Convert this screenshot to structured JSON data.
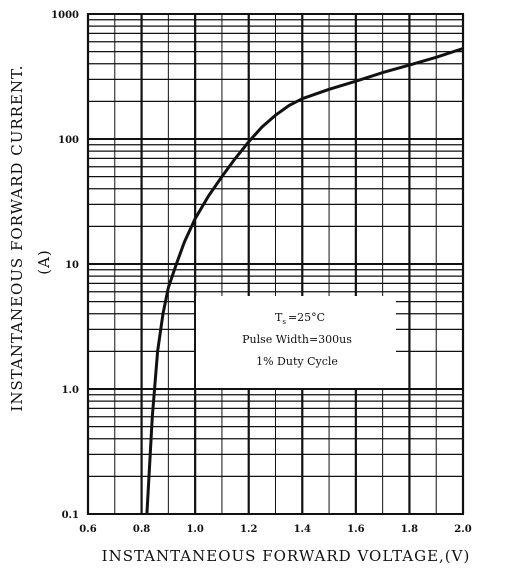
{
  "chart_data": {
    "type": "line",
    "title": "",
    "xlabel": "INSTANTANEOUS FORWARD VOLTAGE,(V)",
    "ylabel": "INSTANTANEOUS FORWARD CURRENT.",
    "ylabel_unit": "(A)",
    "xlim": [
      0.6,
      2.0
    ],
    "ylim": [
      0.1,
      1000
    ],
    "yscale": "log",
    "grid": true,
    "x_ticks": [
      "0.6",
      "0.8",
      "1.0",
      "1.2",
      "1.4",
      "1.6",
      "1.8",
      "2.0"
    ],
    "y_ticks": [
      "0.1",
      "1.0",
      "10",
      "100",
      "1000"
    ],
    "series": [
      {
        "x": [
          0.82,
          0.84,
          0.86,
          0.88,
          0.9,
          0.93,
          0.96,
          1.0,
          1.05,
          1.1,
          1.15,
          1.2,
          1.25,
          1.3,
          1.35,
          1.4,
          1.5,
          1.6,
          1.7,
          1.8,
          1.9,
          2.0
        ],
        "y": [
          0.1,
          0.6,
          2.0,
          4.0,
          6.5,
          10,
          15,
          23,
          35,
          50,
          70,
          95,
          125,
          155,
          185,
          210,
          250,
          290,
          340,
          390,
          450,
          530
        ]
      }
    ],
    "annotation": {
      "line1_main": "T",
      "line1_sub": "s",
      "line1_rest": "=25°C",
      "line2": "Pulse Width=300us",
      "line3": "1% Duty Cycle"
    }
  }
}
